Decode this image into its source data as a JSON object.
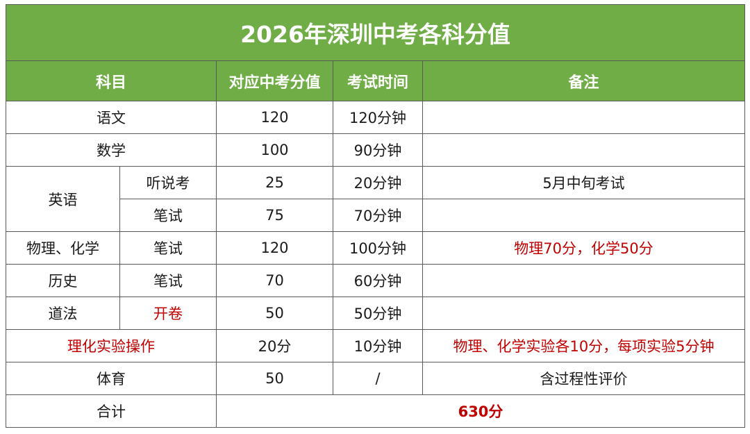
{
  "title": "2026年深圳中考各科分值",
  "headers": {
    "subject": "科目",
    "score": "对应中考分值",
    "time": "考试时间",
    "note": "备注"
  },
  "rows": {
    "chinese": {
      "subject": "语文",
      "score": "120",
      "time": "120分钟",
      "note": ""
    },
    "math": {
      "subject": "数学",
      "score": "100",
      "time": "90分钟",
      "note": ""
    },
    "english": {
      "subject": "英语",
      "listening": {
        "part": "听说考",
        "score": "25",
        "time": "20分钟",
        "note": "5月中旬考试"
      },
      "written": {
        "part": "笔试",
        "score": "75",
        "time": "70分钟",
        "note": ""
      }
    },
    "physchem": {
      "subject": "物理、化学",
      "part": "笔试",
      "score": "120",
      "time": "100分钟",
      "note": "物理70分，化学50分"
    },
    "history": {
      "subject": "历史",
      "part": "笔试",
      "score": "70",
      "time": "60分钟",
      "note": ""
    },
    "law": {
      "subject": "道法",
      "part": "开卷",
      "score": "50",
      "time": "50分钟",
      "note": ""
    },
    "lab": {
      "subject": "理化实验操作",
      "score": "20分",
      "time": "10分钟",
      "note": "物理、化学实验各10分，每项实验5分钟"
    },
    "pe": {
      "subject": "体育",
      "score": "50",
      "time": "/",
      "note": "含过程性评价"
    },
    "total": {
      "label": "合计",
      "value": "630分"
    }
  },
  "colors": {
    "header_bg": "#70ad47",
    "accent_red": "#c00000"
  }
}
